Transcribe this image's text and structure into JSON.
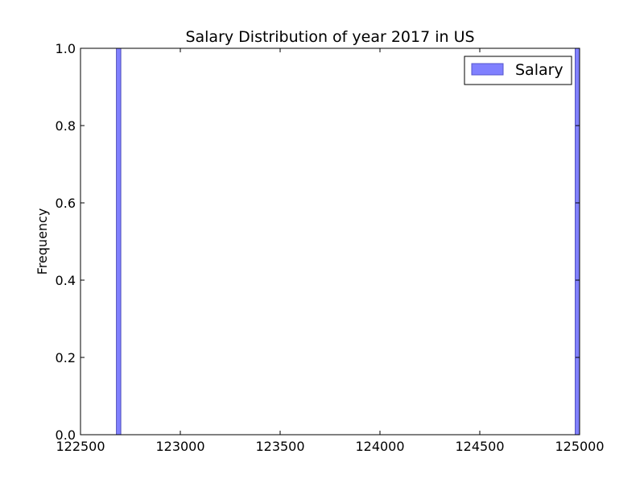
{
  "chart_data": {
    "type": "bar",
    "title": "Salary Distribution of year 2017 in US",
    "xlabel": "",
    "ylabel": "Frequency",
    "xlim": [
      122500,
      125000
    ],
    "ylim": [
      0,
      1.0
    ],
    "xticks": [
      "122500",
      "123000",
      "123500",
      "124000",
      "124500",
      "125000"
    ],
    "yticks": [
      "0.0",
      "0.2",
      "0.4",
      "0.6",
      "0.8",
      "1.0"
    ],
    "legend": {
      "position": "top-right",
      "entries": [
        "Salary"
      ]
    },
    "series": [
      {
        "name": "Salary",
        "color": "#8080ff",
        "bins": [
          {
            "x_start": 122680,
            "x_end": 122702,
            "value": 1.0
          },
          {
            "x_start": 124978,
            "x_end": 125000,
            "value": 1.0
          }
        ]
      }
    ],
    "grid": false
  }
}
